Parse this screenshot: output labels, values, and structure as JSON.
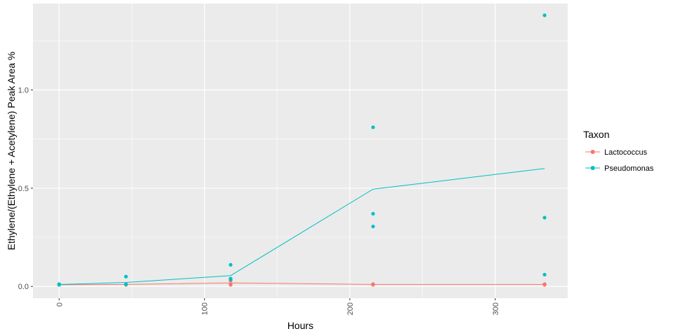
{
  "chart_data": {
    "type": "line",
    "xlabel": "Hours",
    "ylabel": "Ethylene/(Ethylene + Acetylene) Peak Area %",
    "xlim": [
      -18,
      350
    ],
    "ylim": [
      -0.06,
      1.44
    ],
    "x_ticks": [
      0,
      100,
      200,
      300
    ],
    "x_tick_labels": [
      "0",
      "100",
      "200",
      "300"
    ],
    "y_ticks": [
      0.0,
      0.5,
      1.0
    ],
    "y_tick_labels": [
      "0.0",
      "0.5",
      "1.0"
    ],
    "grid": true,
    "legend": {
      "title": "Taxon",
      "position": "right"
    },
    "series": [
      {
        "name": "Lactococcus",
        "color": "#F8766D",
        "line": {
          "x": [
            0,
            46,
            118,
            216,
            334
          ],
          "y": [
            0.008,
            0.01,
            0.018,
            0.01,
            0.01
          ]
        },
        "points": {
          "x": [
            0,
            0,
            46,
            46,
            118,
            118,
            118,
            216,
            216,
            216,
            334,
            334,
            334
          ],
          "y": [
            0.008,
            0.01,
            0.008,
            0.012,
            0.008,
            0.012,
            0.03,
            0.008,
            0.01,
            0.012,
            0.008,
            0.01,
            0.012
          ]
        }
      },
      {
        "name": "Pseudomonas",
        "color": "#00BFC4",
        "line": {
          "x": [
            0,
            46,
            118,
            216,
            334
          ],
          "y": [
            0.01,
            0.02,
            0.055,
            0.495,
            0.6
          ]
        },
        "points": {
          "x": [
            0,
            0,
            46,
            46,
            118,
            118,
            118,
            216,
            216,
            216,
            334,
            334,
            334
          ],
          "y": [
            0.008,
            0.012,
            0.05,
            0.01,
            0.11,
            0.04,
            0.035,
            0.81,
            0.37,
            0.305,
            1.38,
            0.35,
            0.06
          ]
        }
      }
    ]
  }
}
